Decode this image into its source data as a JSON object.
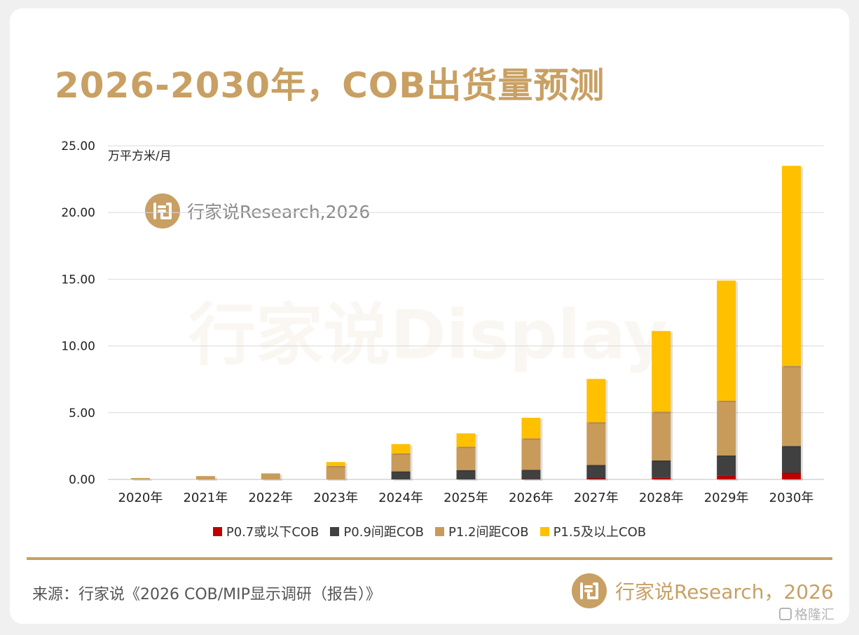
{
  "title": "2026-2030年，COB出货量预测",
  "unit_label": "万平方米/月",
  "watermark_small": "行家说Research,2026",
  "watermark_big": "行家说Display",
  "source": "来源：行家说《2026 COB/MIP显示调研（报告）》",
  "brand": "行家说Research，2026",
  "corner_brand": "格隆汇",
  "colors": {
    "accent": "#c8a063",
    "p07": "#c00000",
    "p09": "#404040",
    "p12": "#c89b5b",
    "p15": "#ffc000"
  },
  "icons": {
    "logo": "brand-logo-icon",
    "corner": "gelonghui-logo-icon"
  },
  "chart_data": {
    "type": "bar",
    "stacked": true,
    "categories": [
      "2020年",
      "2021年",
      "2022年",
      "2023年",
      "2024年",
      "2025年",
      "2026年",
      "2027年",
      "2028年",
      "2029年",
      "2030年"
    ],
    "series": [
      {
        "name": "P0.7或以下COB",
        "values": [
          0,
          0,
          0,
          0,
          0,
          0,
          0.02,
          0.08,
          0.12,
          0.3,
          0.5
        ]
      },
      {
        "name": "P0.9间距COB",
        "values": [
          0,
          0,
          0,
          0,
          0.6,
          0.7,
          0.7,
          1.0,
          1.3,
          1.5,
          2.0
        ]
      },
      {
        "name": "P1.2间距COB",
        "values": [
          0.1,
          0.25,
          0.45,
          1.0,
          1.35,
          1.75,
          2.35,
          3.2,
          3.65,
          4.1,
          6.0
        ]
      },
      {
        "name": "P1.5及以上COB",
        "values": [
          0,
          0,
          0,
          0.3,
          0.7,
          1.0,
          1.55,
          3.25,
          6.05,
          9.0,
          15.0
        ]
      }
    ],
    "ylim": [
      0,
      25
    ],
    "yticks": [
      "0.00",
      "5.00",
      "10.00",
      "15.00",
      "20.00",
      "25.00"
    ],
    "grid": true,
    "legend": "bottom"
  }
}
